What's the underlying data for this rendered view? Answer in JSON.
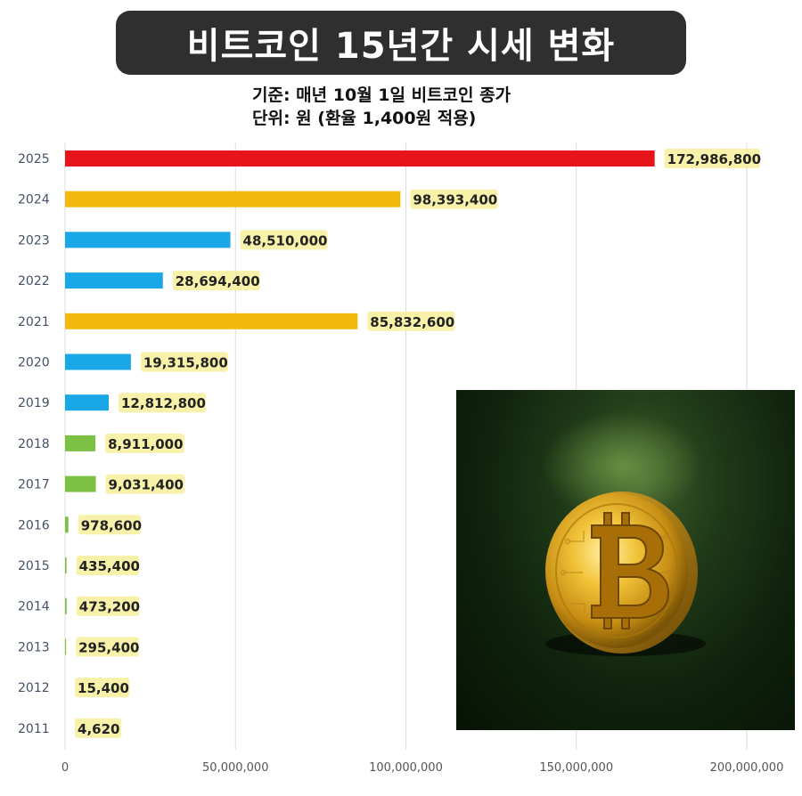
{
  "header": {
    "title": "비트코인 15년간 시세 변화",
    "subtitle_1": "기준: 매년 10월 1일 비트코인 종가",
    "subtitle_2": "단위: 원 (환율 1,400원 적용)"
  },
  "image": {
    "icon": "bitcoin-coin-icon"
  },
  "chart_data": {
    "type": "bar",
    "orientation": "horizontal",
    "categories": [
      "2025",
      "2024",
      "2023",
      "2022",
      "2021",
      "2020",
      "2019",
      "2018",
      "2017",
      "2016",
      "2015",
      "2014",
      "2013",
      "2012",
      "2011"
    ],
    "values": [
      172986800,
      98393400,
      48510000,
      28694400,
      85832600,
      19315800,
      12812800,
      8911000,
      9031400,
      978600,
      435400,
      473200,
      295400,
      15400,
      4620
    ],
    "value_labels": [
      "172,986,800",
      "98,393,400",
      "48,510,000",
      "28,694,400",
      "85,832,600",
      "19,315,800",
      "12,812,800",
      "8,911,000",
      "9,031,400",
      "978,600",
      "435,400",
      "473,200",
      "295,400",
      "15,400",
      "4,620"
    ],
    "bar_colors": [
      "#e8141b",
      "#f5b90d",
      "#1aa7e8",
      "#1aa7e8",
      "#f5b90d",
      "#1aa7e8",
      "#1aa7e8",
      "#7cc144",
      "#7cc144",
      "#7cc144",
      "#7cc144",
      "#7cc144",
      "#7cc144",
      "#7cc144",
      "#7cc144"
    ],
    "xlim": [
      0,
      200000000
    ],
    "xticks": [
      0,
      50000000,
      100000000,
      150000000,
      200000000
    ],
    "xtick_labels": [
      "0",
      "50,000,000",
      "100,000,000",
      "150,000,000",
      "200,000,000"
    ],
    "grid": true,
    "label_highlight_color": "#f7ee9a"
  }
}
